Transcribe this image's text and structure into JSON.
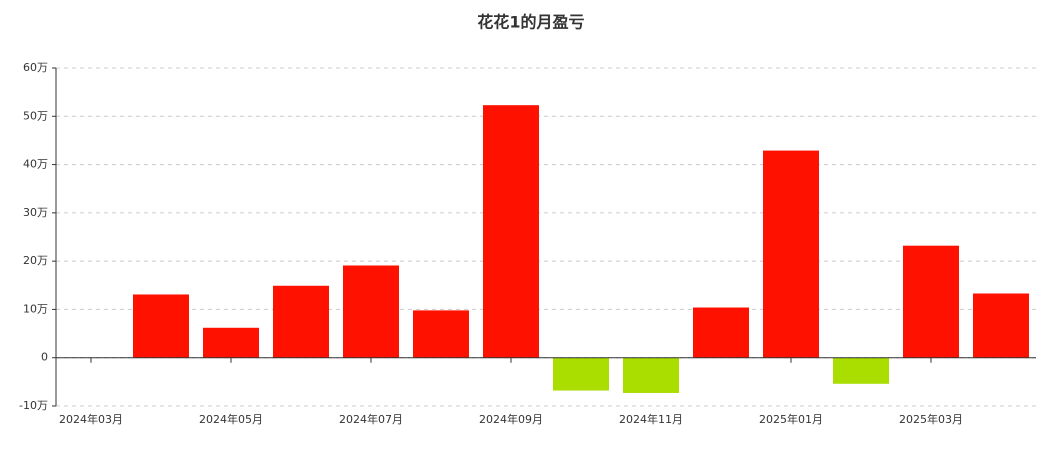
{
  "chart_data": {
    "type": "bar",
    "title": "花花1的月盈亏",
    "categories": [
      "2024年03月",
      null,
      "2024年05月",
      null,
      "2024年07月",
      null,
      "2024年09月",
      null,
      "2024年11月",
      null,
      "2025年01月",
      null,
      "2025年03月",
      null
    ],
    "values": [
      0,
      13.1,
      6.2,
      14.9,
      19.1,
      9.8,
      52.3,
      -6.8,
      -7.3,
      10.4,
      42.9,
      -5.4,
      23.2,
      13.3
    ],
    "positive_color": "#ff1100",
    "negative_color": "#aadd00",
    "ylim": [
      -10,
      60
    ],
    "yticks": [
      {
        "value": -10,
        "label": "-10万"
      },
      0,
      {
        "value": 10,
        "label": "10万"
      },
      {
        "value": 20,
        "label": "20万"
      },
      {
        "value": 30,
        "label": "30万"
      },
      {
        "value": 40,
        "label": "40万"
      },
      {
        "value": 50,
        "label": "50万"
      },
      {
        "value": 60,
        "label": "60万"
      }
    ],
    "grid": true
  }
}
